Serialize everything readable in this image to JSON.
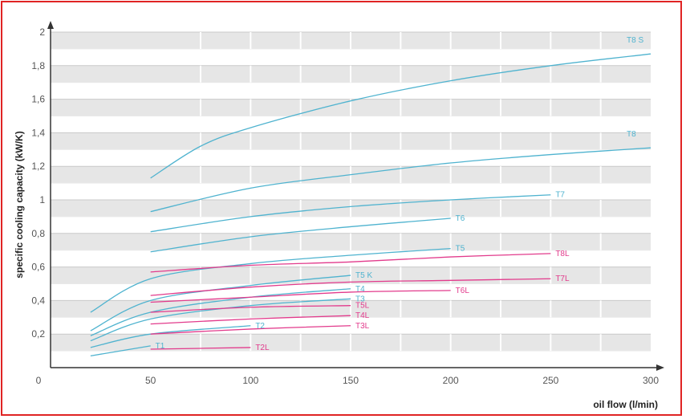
{
  "chart_data": {
    "type": "line",
    "xlabel": "oil flow (l/min)",
    "ylabel": "specific cooling capacity (kW/K)",
    "xlim": [
      0,
      300
    ],
    "ylim": [
      0,
      2
    ],
    "x_ticks": [
      "0",
      "50",
      "100",
      "150",
      "200",
      "250",
      "300"
    ],
    "y_ticks": [
      "0,2",
      "0,4",
      "0,6",
      "0,8",
      "1",
      "1,2",
      "1,4",
      "1,6",
      "1,8",
      "2"
    ],
    "grid": true,
    "colors": {
      "blue": "#4fb3cf",
      "magenta": "#e23b8c"
    },
    "series": [
      {
        "name": "T8 S",
        "color": "blue",
        "x": [
          50,
          75,
          100,
          150,
          200,
          250,
          300
        ],
        "y": [
          1.13,
          1.32,
          1.43,
          1.59,
          1.71,
          1.8,
          1.87
        ]
      },
      {
        "name": "T8",
        "color": "blue",
        "x": [
          50,
          100,
          150,
          200,
          250,
          300
        ],
        "y": [
          0.93,
          1.07,
          1.15,
          1.22,
          1.27,
          1.31
        ]
      },
      {
        "name": "T7",
        "color": "blue",
        "x": [
          50,
          100,
          150,
          200,
          250
        ],
        "y": [
          0.81,
          0.9,
          0.96,
          1.0,
          1.03
        ]
      },
      {
        "name": "T6",
        "color": "blue",
        "x": [
          50,
          100,
          150,
          200
        ],
        "y": [
          0.69,
          0.78,
          0.84,
          0.89
        ]
      },
      {
        "name": "T5",
        "color": "blue",
        "x": [
          20,
          50,
          100,
          150,
          200
        ],
        "y": [
          0.33,
          0.53,
          0.62,
          0.67,
          0.71
        ]
      },
      {
        "name": "T5 K",
        "color": "blue",
        "x": [
          20,
          50,
          100,
          150
        ],
        "y": [
          0.22,
          0.4,
          0.49,
          0.55
        ]
      },
      {
        "name": "T4",
        "color": "blue",
        "x": [
          20,
          50,
          100,
          150
        ],
        "y": [
          0.19,
          0.33,
          0.42,
          0.47
        ]
      },
      {
        "name": "T3",
        "color": "blue",
        "x": [
          20,
          50,
          100,
          150
        ],
        "y": [
          0.16,
          0.29,
          0.37,
          0.41
        ]
      },
      {
        "name": "T2",
        "color": "blue",
        "x": [
          20,
          50,
          100
        ],
        "y": [
          0.12,
          0.2,
          0.25
        ]
      },
      {
        "name": "T1",
        "color": "blue",
        "x": [
          20,
          50
        ],
        "y": [
          0.07,
          0.13
        ]
      },
      {
        "name": "T8L",
        "color": "magenta",
        "x": [
          50,
          100,
          150,
          200,
          250
        ],
        "y": [
          0.57,
          0.61,
          0.63,
          0.66,
          0.68
        ]
      },
      {
        "name": "T7L",
        "color": "magenta",
        "x": [
          50,
          100,
          150,
          200,
          250
        ],
        "y": [
          0.43,
          0.48,
          0.51,
          0.52,
          0.53
        ]
      },
      {
        "name": "T6L",
        "color": "magenta",
        "x": [
          50,
          100,
          150,
          200
        ],
        "y": [
          0.39,
          0.42,
          0.45,
          0.46
        ]
      },
      {
        "name": "T5L",
        "color": "magenta",
        "x": [
          50,
          100,
          150
        ],
        "y": [
          0.33,
          0.36,
          0.37
        ]
      },
      {
        "name": "T4L",
        "color": "magenta",
        "x": [
          50,
          100,
          150
        ],
        "y": [
          0.26,
          0.29,
          0.31
        ]
      },
      {
        "name": "T3L",
        "color": "magenta",
        "x": [
          50,
          100,
          150
        ],
        "y": [
          0.2,
          0.23,
          0.25
        ]
      },
      {
        "name": "T2L",
        "color": "magenta",
        "x": [
          50,
          100
        ],
        "y": [
          0.11,
          0.12
        ]
      }
    ]
  }
}
